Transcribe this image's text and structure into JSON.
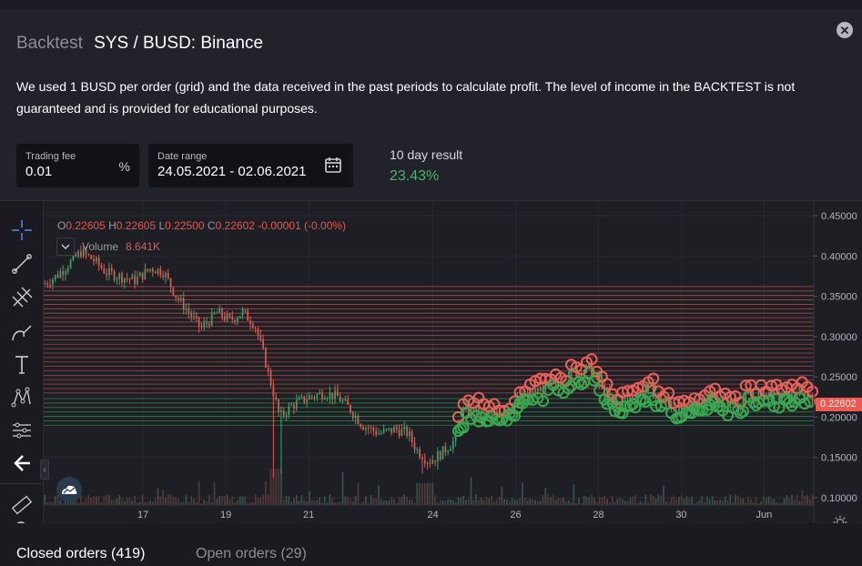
{
  "header": {
    "title_muted": "Backtest",
    "title_main": "SYS / BUSD: Binance",
    "description": "We used 1 BUSD per order (grid) and the data received in the past periods to calculate profit. The level of income in the BACKTEST is not guaranteed and is provided for educational purposes."
  },
  "fields": {
    "trading_fee": {
      "label": "Trading fee",
      "value": "0.01",
      "suffix": "%"
    },
    "date_range": {
      "label": "Date range",
      "value": "24.05.2021 - 02.06.2021"
    }
  },
  "result": {
    "label": "10 day result",
    "value": "23.43%",
    "color": "#4bb36a"
  },
  "legend": {
    "o_key": "O",
    "o_val": "0.22605",
    "h_key": "H",
    "h_val": "0.22605",
    "l_key": "L",
    "l_val": "0.22500",
    "c_key": "C",
    "c_val": "0.22602",
    "change": "-0.00001 (-0.00%)",
    "volume_name": "Volume",
    "volume_value": "8.641K"
  },
  "last_price_tag": "0.22602",
  "chart_data": {
    "type": "candlestick",
    "pair": "SYS / BUSD",
    "y_ticks": [
      "0.45000",
      "0.40000",
      "0.35000",
      "0.30000",
      "0.25000",
      "0.20000",
      "0.15000",
      "0.10000"
    ],
    "ylim": [
      0.1,
      0.45
    ],
    "x_ticks": [
      {
        "label": "17",
        "day": 17
      },
      {
        "label": "19",
        "day": 19
      },
      {
        "label": "21",
        "day": 21
      },
      {
        "label": "24",
        "day": 24
      },
      {
        "label": "26",
        "day": 26
      },
      {
        "label": "28",
        "day": 28
      },
      {
        "label": "30",
        "day": 30
      },
      {
        "label": "Jun",
        "day": 32
      }
    ],
    "xlim": [
      14.6,
      33.2
    ],
    "price_path": [
      [
        14.6,
        0.365
      ],
      [
        14.9,
        0.375
      ],
      [
        15.2,
        0.39
      ],
      [
        15.5,
        0.405
      ],
      [
        15.8,
        0.395
      ],
      [
        16.1,
        0.38
      ],
      [
        16.4,
        0.375
      ],
      [
        16.8,
        0.37
      ],
      [
        17.2,
        0.385
      ],
      [
        17.5,
        0.38
      ],
      [
        17.8,
        0.35
      ],
      [
        18.1,
        0.33
      ],
      [
        18.4,
        0.31
      ],
      [
        18.8,
        0.33
      ],
      [
        19.1,
        0.32
      ],
      [
        19.4,
        0.33
      ],
      [
        19.7,
        0.315
      ],
      [
        19.9,
        0.28
      ],
      [
        20.1,
        0.24
      ],
      [
        20.3,
        0.2
      ],
      [
        20.6,
        0.215
      ],
      [
        21.0,
        0.225
      ],
      [
        21.4,
        0.23
      ],
      [
        21.7,
        0.225
      ],
      [
        22.0,
        0.21
      ],
      [
        22.3,
        0.19
      ],
      [
        22.7,
        0.18
      ],
      [
        23.1,
        0.185
      ],
      [
        23.4,
        0.18
      ],
      [
        23.6,
        0.16
      ],
      [
        23.9,
        0.145
      ],
      [
        24.2,
        0.155
      ],
      [
        24.5,
        0.17
      ],
      [
        24.7,
        0.205
      ],
      [
        25.0,
        0.21
      ],
      [
        25.4,
        0.2
      ],
      [
        25.8,
        0.21
      ],
      [
        26.2,
        0.225
      ],
      [
        26.6,
        0.235
      ],
      [
        27.0,
        0.24
      ],
      [
        27.4,
        0.255
      ],
      [
        27.8,
        0.26
      ],
      [
        28.1,
        0.235
      ],
      [
        28.4,
        0.215
      ],
      [
        28.8,
        0.225
      ],
      [
        29.2,
        0.235
      ],
      [
        29.6,
        0.22
      ],
      [
        30.0,
        0.205
      ],
      [
        30.4,
        0.22
      ],
      [
        30.8,
        0.225
      ],
      [
        31.2,
        0.215
      ],
      [
        31.6,
        0.225
      ],
      [
        32.0,
        0.23
      ],
      [
        32.4,
        0.225
      ],
      [
        32.8,
        0.23
      ],
      [
        33.2,
        0.226
      ]
    ],
    "sell_grid_range": [
      0.23,
      0.365
    ],
    "buy_grid_range": [
      0.19,
      0.225
    ],
    "grid_step": 0.0055,
    "trade_markers_start_day": 24.6,
    "colors": {
      "up": "#3aa46a",
      "down": "#e05a50",
      "sell": "#e8625a",
      "buy": "#3aa850"
    }
  },
  "tabs": {
    "closed": "Closed orders (419)",
    "open": "Open orders (29)"
  }
}
